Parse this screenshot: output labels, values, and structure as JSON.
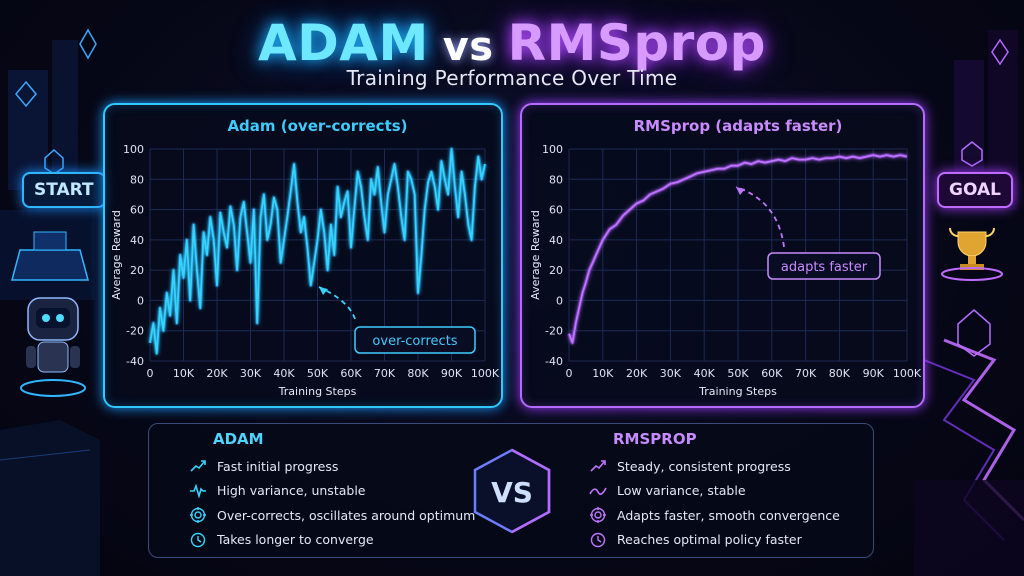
{
  "title": {
    "left": "ADAM",
    "vs": "vs",
    "right": "RMSprop"
  },
  "subtitle": "Training Performance Over Time",
  "badges": {
    "start": "START",
    "goal": "GOAL"
  },
  "colors": {
    "adam": "#35d4ff",
    "rmsprop": "#c075ff"
  },
  "chart_data": [
    {
      "type": "line",
      "title": "Adam (over-corrects)",
      "xlabel": "Training Steps",
      "ylabel": "Average Reward",
      "xlim": [
        0,
        100000
      ],
      "ylim": [
        -40,
        100
      ],
      "xticks": [
        0,
        10000,
        20000,
        30000,
        40000,
        50000,
        60000,
        70000,
        80000,
        90000,
        100000
      ],
      "xtick_labels": [
        "0",
        "10K",
        "20K",
        "30K",
        "40K",
        "50K",
        "60K",
        "70K",
        "80K",
        "90K",
        "100K"
      ],
      "yticks": [
        -40,
        -20,
        0,
        20,
        40,
        60,
        80,
        100
      ],
      "grid": true,
      "annotation": {
        "text": "over-corrects",
        "x": 52000,
        "y": 10
      },
      "series": [
        {
          "x": [
            0,
            1000,
            2000,
            3000,
            4000,
            5000,
            6000,
            7000,
            8000,
            9000,
            10000,
            11000,
            12000,
            13000,
            14000,
            15000,
            16000,
            17000,
            18000,
            19000,
            20000,
            21000,
            22000,
            23000,
            24000,
            25000,
            26000,
            27000,
            28000,
            29000,
            30000,
            31000,
            32000,
            33000,
            34000,
            35000,
            36000,
            37000,
            38000,
            39000,
            40000,
            41000,
            42000,
            43000,
            44000,
            45000,
            46000,
            47000,
            48000,
            49000,
            50000,
            51000,
            52000,
            53000,
            54000,
            55000,
            56000,
            57000,
            58000,
            59000,
            60000,
            61000,
            62000,
            63000,
            64000,
            65000,
            66000,
            67000,
            68000,
            69000,
            70000,
            71000,
            72000,
            73000,
            74000,
            75000,
            76000,
            77000,
            78000,
            79000,
            80000,
            81000,
            82000,
            83000,
            84000,
            85000,
            86000,
            87000,
            88000,
            89000,
            90000,
            91000,
            92000,
            93000,
            94000,
            95000,
            96000,
            97000,
            98000,
            99000,
            100000
          ],
          "y": [
            -28,
            -15,
            -35,
            -5,
            -20,
            5,
            -10,
            20,
            -15,
            30,
            15,
            40,
            0,
            50,
            20,
            -5,
            45,
            30,
            55,
            40,
            10,
            58,
            45,
            35,
            62,
            50,
            20,
            55,
            65,
            45,
            25,
            60,
            -15,
            55,
            70,
            40,
            50,
            68,
            60,
            25,
            40,
            55,
            72,
            90,
            65,
            45,
            55,
            35,
            10,
            25,
            40,
            60,
            45,
            20,
            50,
            30,
            75,
            55,
            65,
            72,
            35,
            60,
            85,
            75,
            55,
            40,
            80,
            70,
            88,
            65,
            45,
            70,
            80,
            90,
            75,
            55,
            40,
            85,
            80,
            70,
            5,
            30,
            60,
            78,
            85,
            75,
            60,
            92,
            80,
            70,
            100,
            75,
            55,
            85,
            70,
            50,
            40,
            75,
            95,
            80,
            90
          ]
        }
      ]
    },
    {
      "type": "line",
      "title": "RMSprop (adapts faster)",
      "xlabel": "Training Steps",
      "ylabel": "Average Reward",
      "xlim": [
        0,
        100000
      ],
      "ylim": [
        -40,
        100
      ],
      "xticks": [
        0,
        10000,
        20000,
        30000,
        40000,
        50000,
        60000,
        70000,
        80000,
        90000,
        100000
      ],
      "xtick_labels": [
        "0",
        "10K",
        "20K",
        "30K",
        "40K",
        "50K",
        "60K",
        "70K",
        "80K",
        "90K",
        "100K"
      ],
      "yticks": [
        -40,
        -20,
        0,
        20,
        40,
        60,
        80,
        100
      ],
      "grid": true,
      "annotation": {
        "text": "adapts faster",
        "x": 50000,
        "y": 82
      },
      "series": [
        {
          "x": [
            0,
            1000,
            2000,
            3000,
            4000,
            5000,
            6000,
            7000,
            8000,
            9000,
            10000,
            12000,
            14000,
            16000,
            18000,
            20000,
            22000,
            24000,
            26000,
            28000,
            30000,
            32000,
            34000,
            36000,
            38000,
            40000,
            42000,
            44000,
            46000,
            48000,
            50000,
            52000,
            54000,
            56000,
            58000,
            60000,
            62000,
            64000,
            66000,
            68000,
            70000,
            72000,
            74000,
            76000,
            78000,
            80000,
            82000,
            84000,
            86000,
            88000,
            90000,
            92000,
            94000,
            96000,
            98000,
            100000
          ],
          "y": [
            -22,
            -28,
            -15,
            -5,
            5,
            12,
            20,
            25,
            30,
            35,
            40,
            47,
            50,
            56,
            60,
            64,
            66,
            70,
            72,
            74,
            77,
            78,
            80,
            82,
            84,
            85,
            86,
            87,
            87,
            89,
            89,
            91,
            90,
            92,
            91,
            92,
            93,
            92,
            94,
            93,
            93,
            94,
            93,
            94,
            94,
            95,
            94,
            95,
            94,
            95,
            96,
            95,
            96,
            95,
            96,
            95
          ]
        }
      ]
    }
  ],
  "comparison": {
    "vs": "VS",
    "adam": {
      "heading": "ADAM",
      "items": [
        {
          "icon": "trend-up-icon",
          "text": "Fast initial progress"
        },
        {
          "icon": "pulse-icon",
          "text": "High variance, unstable"
        },
        {
          "icon": "target-icon",
          "text": "Over-corrects, oscillates around optimum"
        },
        {
          "icon": "clock-icon",
          "text": "Takes longer to converge"
        }
      ]
    },
    "rmsprop": {
      "heading": "RMSPROP",
      "items": [
        {
          "icon": "trend-up-icon",
          "text": "Steady, consistent progress"
        },
        {
          "icon": "wave-icon",
          "text": "Low variance, stable"
        },
        {
          "icon": "target-icon",
          "text": "Adapts faster, smooth convergence"
        },
        {
          "icon": "clock-icon",
          "text": "Reaches optimal policy faster"
        }
      ]
    }
  }
}
